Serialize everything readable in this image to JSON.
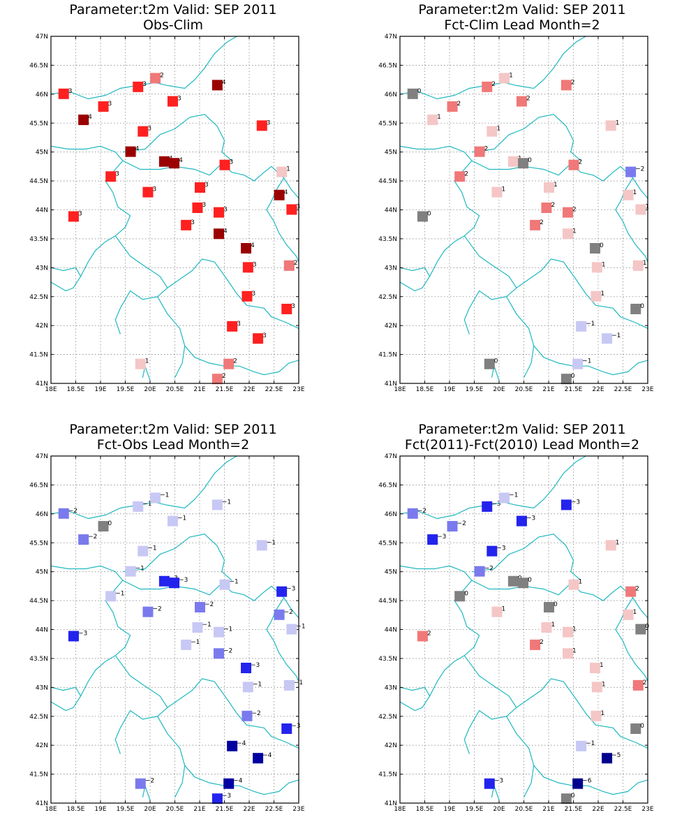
{
  "axes": {
    "x_ticks": [
      "18E",
      "18.5E",
      "19E",
      "19.5E",
      "20E",
      "20.5E",
      "21E",
      "21.5E",
      "22E",
      "22.5E",
      "23E"
    ],
    "y_ticks": [
      "41N",
      "41.5N",
      "42N",
      "42.5N",
      "43N",
      "43.5N",
      "44N",
      "44.5N",
      "45N",
      "45.5N",
      "46N",
      "46.5N",
      "47N"
    ],
    "lon_range": [
      18,
      23
    ],
    "lat_range": [
      41,
      47
    ]
  },
  "stations": [
    {
      "lon": 18.25,
      "lat": 46.0
    },
    {
      "lon": 18.65,
      "lat": 45.55
    },
    {
      "lon": 19.05,
      "lat": 45.78
    },
    {
      "lon": 19.75,
      "lat": 46.12
    },
    {
      "lon": 20.1,
      "lat": 46.27
    },
    {
      "lon": 20.45,
      "lat": 45.87
    },
    {
      "lon": 19.85,
      "lat": 45.35
    },
    {
      "lon": 21.35,
      "lat": 46.15
    },
    {
      "lon": 22.25,
      "lat": 45.45
    },
    {
      "lon": 19.6,
      "lat": 45.0
    },
    {
      "lon": 20.28,
      "lat": 44.83
    },
    {
      "lon": 20.48,
      "lat": 44.8
    },
    {
      "lon": 21.5,
      "lat": 44.77
    },
    {
      "lon": 22.65,
      "lat": 44.65
    },
    {
      "lon": 19.2,
      "lat": 44.57
    },
    {
      "lon": 19.95,
      "lat": 44.3
    },
    {
      "lon": 21.0,
      "lat": 44.38
    },
    {
      "lon": 22.6,
      "lat": 44.25
    },
    {
      "lon": 18.45,
      "lat": 43.88
    },
    {
      "lon": 20.95,
      "lat": 44.03
    },
    {
      "lon": 21.38,
      "lat": 43.95
    },
    {
      "lon": 22.85,
      "lat": 44.0
    },
    {
      "lon": 20.72,
      "lat": 43.73
    },
    {
      "lon": 21.38,
      "lat": 43.58
    },
    {
      "lon": 21.93,
      "lat": 43.33
    },
    {
      "lon": 21.97,
      "lat": 43.0
    },
    {
      "lon": 22.8,
      "lat": 43.03
    },
    {
      "lon": 21.95,
      "lat": 42.5
    },
    {
      "lon": 22.75,
      "lat": 42.28
    },
    {
      "lon": 21.65,
      "lat": 41.98
    },
    {
      "lon": 22.17,
      "lat": 41.77
    },
    {
      "lon": 19.8,
      "lat": 41.33
    },
    {
      "lon": 21.58,
      "lat": 41.33
    },
    {
      "lon": 21.35,
      "lat": 41.07
    }
  ],
  "chart_data": [
    {
      "type": "map-station",
      "title": "Parameter:t2m Valid: SEP 2011",
      "subtitle": "Obs-Clim",
      "values": [
        3,
        4,
        3,
        3,
        2,
        3,
        3,
        4,
        3,
        4,
        4,
        4,
        3,
        1,
        3,
        3,
        3,
        4,
        3,
        3,
        3,
        3,
        3,
        4,
        4,
        3,
        2,
        3,
        3,
        3,
        3,
        1,
        2,
        2
      ]
    },
    {
      "type": "map-station",
      "title": "Parameter:t2m Valid: SEP 2011",
      "subtitle": "Fct-Clim Lead Month=2",
      "values": [
        0,
        1,
        2,
        2,
        1,
        2,
        1,
        2,
        1,
        2,
        1,
        0,
        2,
        -2,
        2,
        1,
        1,
        1,
        0,
        2,
        2,
        1,
        2,
        1,
        0,
        1,
        1,
        1,
        0,
        -1,
        -1,
        0,
        -1,
        0
      ]
    },
    {
      "type": "map-station",
      "title": "Parameter:t2m Valid: SEP 2011",
      "subtitle": "Fct-Obs Lead Month=2",
      "values": [
        -2,
        -2,
        0,
        -1,
        -1,
        -1,
        -1,
        -1,
        -1,
        -1,
        -3,
        -3,
        -1,
        -3,
        -1,
        -2,
        -2,
        -2,
        -3,
        -1,
        -1,
        -1,
        -1,
        -2,
        -3,
        -1,
        -1,
        -2,
        -3,
        -4,
        -4,
        -2,
        -4,
        -3
      ]
    },
    {
      "type": "map-station",
      "title": "Parameter:t2m Valid: SEP 2011",
      "subtitle": "Fct(2011)-Fct(2010) Lead Month=2",
      "values": [
        -2,
        -3,
        -2,
        -3,
        -1,
        -3,
        -3,
        -3,
        1,
        -2,
        0,
        0,
        1,
        2,
        0,
        1,
        0,
        1,
        2,
        1,
        1,
        0,
        2,
        1,
        1,
        1,
        2,
        1,
        0,
        -1,
        -5,
        -3,
        -6,
        0
      ]
    }
  ],
  "colors": {
    "-6": "#00008c",
    "-5": "#00008c",
    "-4": "#0000a0",
    "-3": "#2323ee",
    "-2": "#7a7aee",
    "-1": "#c8c8f5",
    "0": "#808080",
    "1": "#f5c6c6",
    "2": "#f07878",
    "3": "#ff2020",
    "4": "#9a0000",
    "5": "#9a0000",
    "6": "#9a0000",
    "border": "#20b8c0"
  }
}
